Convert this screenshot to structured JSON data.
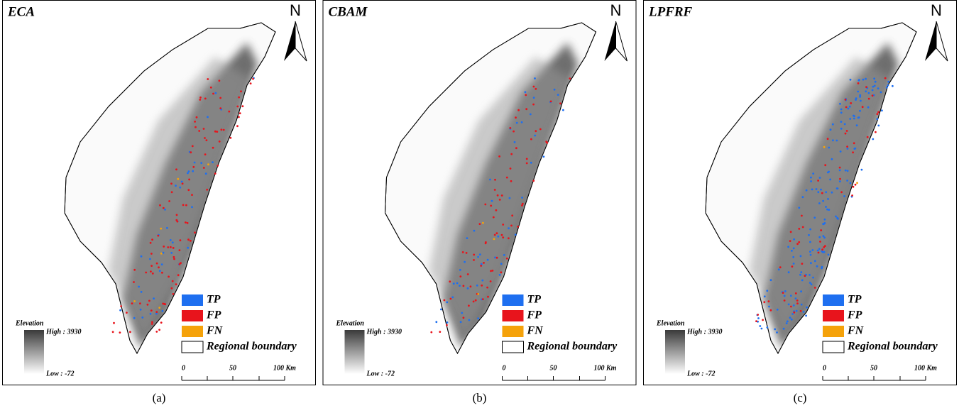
{
  "panels": [
    {
      "title": "ECA",
      "caption": "(a)"
    },
    {
      "title": "CBAM",
      "caption": "(b)"
    },
    {
      "title": "LPFRF",
      "caption": "(c)"
    }
  ],
  "north": "N",
  "legend": [
    {
      "label": "TP",
      "color": "#1e6ff0"
    },
    {
      "label": "FP",
      "color": "#e8141c"
    },
    {
      "label": "FN",
      "color": "#f5a20a"
    },
    {
      "label": "Regional boundary",
      "color": "#ffffff"
    }
  ],
  "elevation": {
    "title": "Elevation",
    "high": "High : 3930",
    "low": "Low : -72"
  },
  "scale": [
    "0",
    "50",
    "100 Km"
  ]
}
